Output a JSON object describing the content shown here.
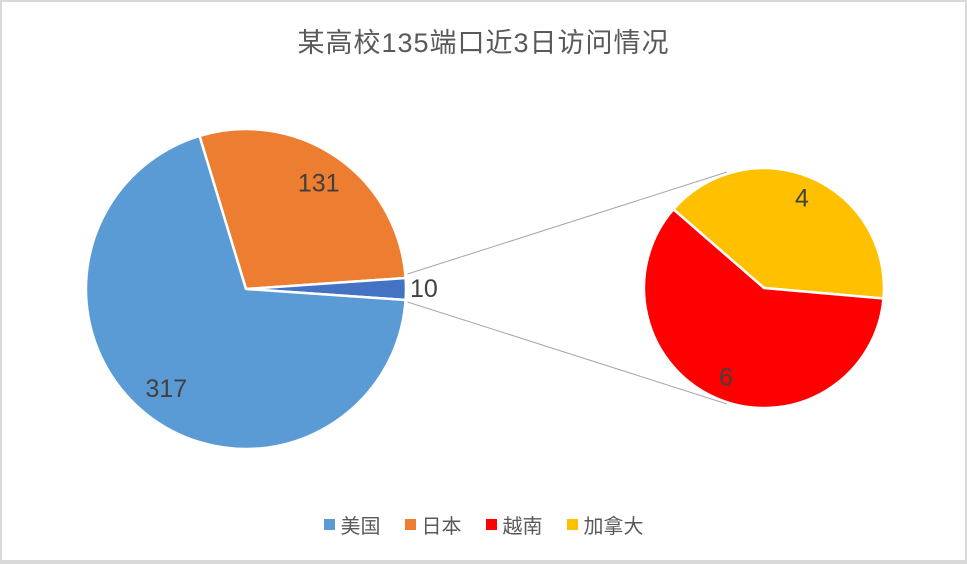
{
  "title": "某高校135端口近3日访问情况",
  "colors": {
    "background": "#FFFFFF",
    "frame_border": "#D9D9D9",
    "title_text": "#595959",
    "label_text": "#404040",
    "legend_text": "#595959",
    "connector_line": "#A6A6A6",
    "slice_border": "#FFFFFF",
    "usa": "#5B9BD5",
    "japan": "#ED7D31",
    "other_group": "#4472C4",
    "vietnam": "#FF0000",
    "canada": "#FFC000"
  },
  "legend": {
    "items": [
      {
        "id": "usa",
        "label": "美国",
        "color": "#5B9BD5"
      },
      {
        "id": "japan",
        "label": "日本",
        "color": "#ED7D31"
      },
      {
        "id": "vietnam",
        "label": "越南",
        "color": "#FF0000"
      },
      {
        "id": "canada",
        "label": "加拿大",
        "color": "#FFC000"
      }
    ]
  },
  "chart_data": {
    "type": "pie",
    "subtype": "pie-of-pie",
    "title": "某高校135端口近3日访问情况",
    "legend_position": "bottom",
    "categories": [
      "美国",
      "日本",
      "越南",
      "加拿大"
    ],
    "values": [
      317,
      131,
      6,
      4
    ],
    "total": 458,
    "main_pie": {
      "start_angle_deg": -16.9,
      "slices": [
        {
          "id": "japan",
          "name": "日本",
          "value": 131,
          "label": "131",
          "color": "#ED7D31"
        },
        {
          "id": "other-group",
          "name": "",
          "value": 10,
          "label": "10",
          "color": "#4472C4",
          "label_outside": true
        },
        {
          "id": "usa",
          "name": "美国",
          "value": 317,
          "label": "317",
          "color": "#5B9BD5"
        }
      ]
    },
    "secondary_pie": {
      "start_angle_deg": -49,
      "slices": [
        {
          "id": "canada",
          "name": "加拿大",
          "value": 4,
          "label": "4",
          "color": "#FFC000"
        },
        {
          "id": "vietnam",
          "name": "越南",
          "value": 6,
          "label": "6",
          "color": "#FF0000"
        }
      ]
    }
  }
}
